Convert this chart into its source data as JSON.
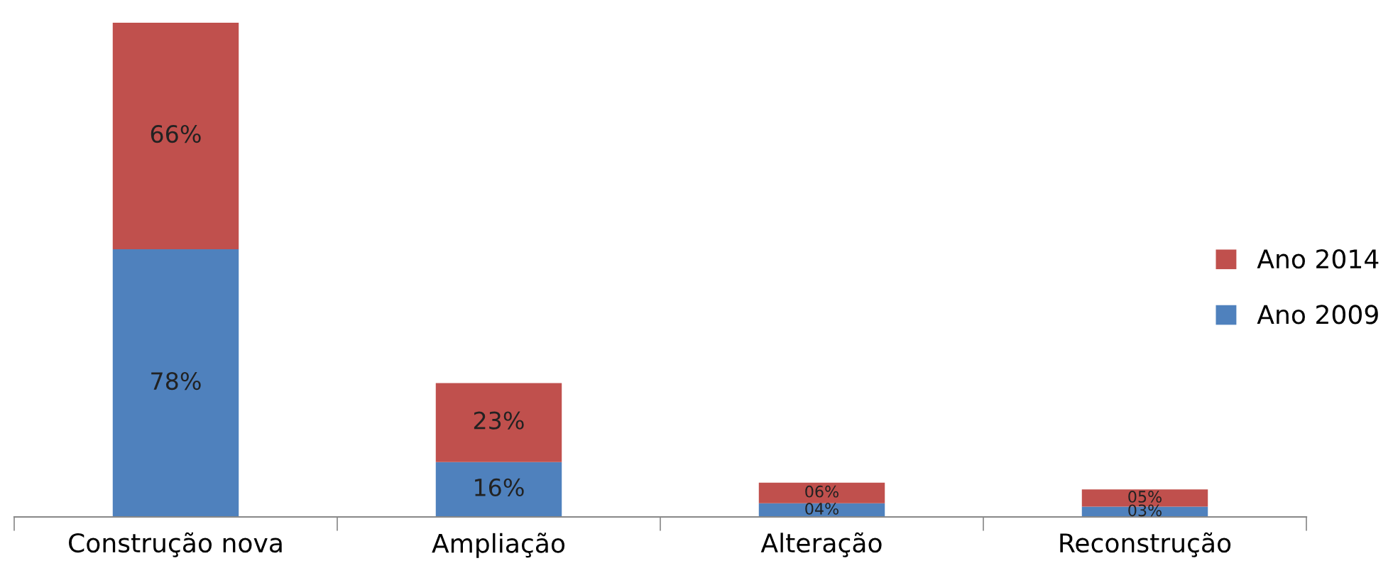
{
  "chart_data": {
    "type": "bar",
    "stacked": true,
    "categories": [
      "Construção nova",
      "Ampliação",
      "Alteração",
      "Reconstrução"
    ],
    "series": [
      {
        "name": "Ano 2009",
        "color": "#4f81bd",
        "values": [
          78,
          16,
          4,
          3
        ],
        "value_labels": [
          "78%",
          "16%",
          "04%",
          "03%"
        ]
      },
      {
        "name": "Ano 2014",
        "color": "#c0504d",
        "values": [
          66,
          23,
          6,
          5
        ],
        "value_labels": [
          "66%",
          "23%",
          "06%",
          "05%"
        ]
      }
    ],
    "legend": "right"
  }
}
